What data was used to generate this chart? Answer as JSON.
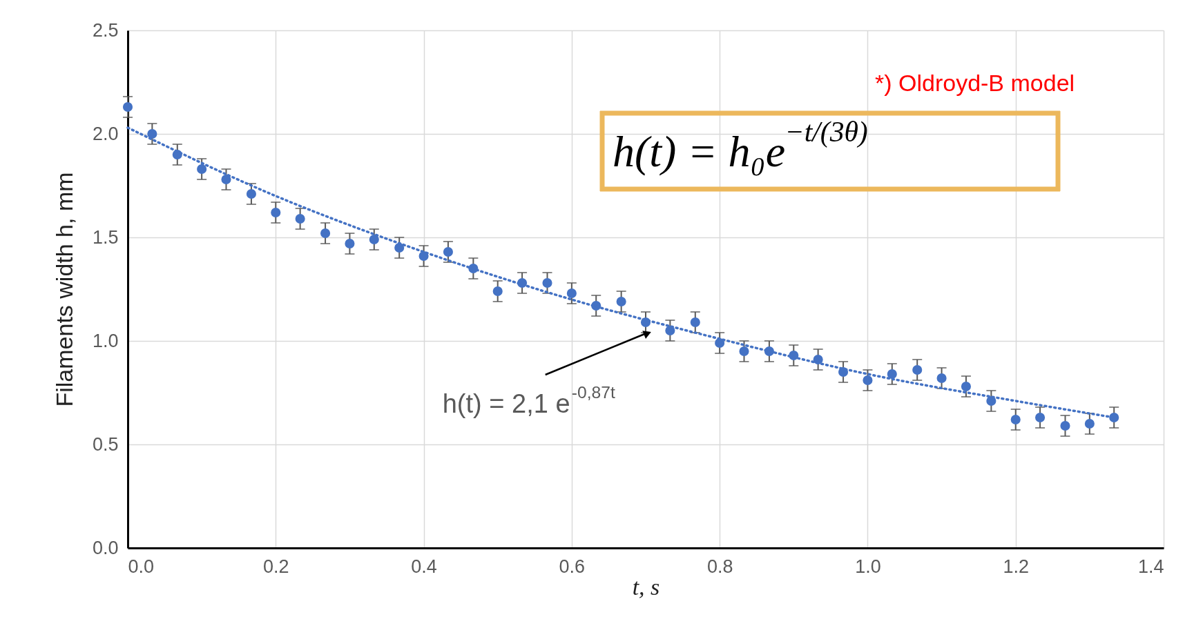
{
  "chart_data": {
    "type": "scatter",
    "xlabel": "t, s",
    "ylabel": "Filaments width     h, mm",
    "x": [
      0,
      0.033,
      0.067,
      0.1,
      0.133,
      0.167,
      0.2,
      0.233,
      0.267,
      0.3,
      0.333,
      0.367,
      0.4,
      0.433,
      0.467,
      0.5,
      0.533,
      0.567,
      0.6,
      0.633,
      0.667,
      0.7,
      0.733,
      0.767,
      0.8,
      0.833,
      0.867,
      0.9,
      0.933,
      0.967,
      1.0,
      1.033,
      1.067,
      1.1,
      1.133,
      1.167,
      1.2,
      1.233,
      1.267,
      1.3,
      1.333
    ],
    "series": [
      {
        "color": "#4472c4",
        "marker": "circle",
        "values": [
          2.13,
          2.0,
          1.9,
          1.83,
          1.78,
          1.71,
          1.62,
          1.59,
          1.52,
          1.47,
          1.49,
          1.45,
          1.41,
          1.43,
          1.35,
          1.24,
          1.28,
          1.28,
          1.23,
          1.17,
          1.19,
          1.09,
          1.05,
          1.09,
          0.99,
          0.95,
          0.95,
          0.93,
          0.91,
          0.85,
          0.81,
          0.84,
          0.86,
          0.82,
          0.78,
          0.71,
          0.62,
          0.63,
          0.59,
          0.6,
          0.63
        ],
        "errors": [
          0.05,
          0.05,
          0.05,
          0.05,
          0.05,
          0.05,
          0.05,
          0.05,
          0.05,
          0.05,
          0.05,
          0.05,
          0.05,
          0.05,
          0.05,
          0.05,
          0.05,
          0.05,
          0.05,
          0.05,
          0.05,
          0.05,
          0.05,
          0.05,
          0.05,
          0.05,
          0.05,
          0.05,
          0.05,
          0.05,
          0.05,
          0.05,
          0.05,
          0.05,
          0.05,
          0.05,
          0.05,
          0.05,
          0.05,
          0.05,
          0.05
        ]
      },
      {
        "type": "line",
        "color": "#4472c4",
        "line_style": "dotted",
        "marker": "none",
        "x": [
          0,
          0.2,
          0.4,
          0.6,
          0.8,
          1.0,
          1.2,
          1.333
        ],
        "values": [
          2.03,
          1.7,
          1.43,
          1.2,
          1.01,
          0.84,
          0.71,
          0.63
        ]
      }
    ],
    "xlim": [
      0,
      1.4
    ],
    "xticks": [
      {
        "value": 0,
        "label": "0.0"
      },
      0.2,
      0.4,
      0.6,
      0.8,
      {
        "value": 1,
        "label": "1.0"
      },
      1.2,
      1.4
    ],
    "ylim": [
      0,
      2.5
    ],
    "yticks": [
      {
        "value": 0,
        "label": "0.0"
      },
      0.5,
      {
        "value": 1,
        "label": "1.0"
      },
      1.5,
      {
        "value": 2,
        "label": "2.0"
      },
      2.5
    ],
    "grid": true,
    "annotations": [
      {
        "text": "h(t) = 2,1 e$^{-0,87t}$",
        "x": 0.71,
        "y": 1.05
      },
      "*) Oldroyd-B model",
      "h(t) = h₀e$^{−t/(3θ)}$"
    ]
  }
}
